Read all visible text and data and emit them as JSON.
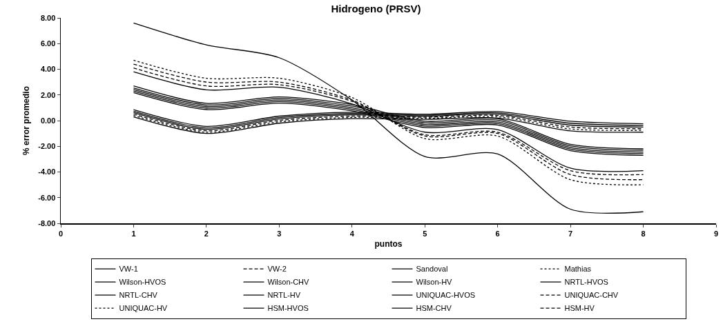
{
  "chart_data": {
    "type": "line",
    "title": "Hidrogeno (PRSV)",
    "xlabel": "puntos",
    "ylabel": "% error promedio",
    "x": [
      1,
      2,
      3,
      4,
      5,
      6,
      7,
      8
    ],
    "xlim": [
      0,
      9
    ],
    "xticks": [
      0,
      1,
      2,
      3,
      4,
      5,
      6,
      7,
      8,
      9
    ],
    "ylim": [
      -8,
      8
    ],
    "yticks": [
      {
        "value": -8,
        "label": "-8.00"
      },
      {
        "value": -6,
        "label": "-6.00"
      },
      {
        "value": -4,
        "label": "-4.00"
      },
      {
        "value": -2,
        "label": "-2.00"
      },
      {
        "value": 0,
        "label": "0.00"
      },
      {
        "value": 2,
        "label": "2.00"
      },
      {
        "value": 4,
        "label": "4.00"
      },
      {
        "value": 6,
        "label": "6.00"
      },
      {
        "value": 8,
        "label": "8.00"
      }
    ],
    "grid": false,
    "legend": "bottom",
    "marker": "none",
    "series": [
      {
        "name": "VW-1",
        "color": "#000000",
        "line_style": "solid",
        "values": [
          7.6,
          5.9,
          4.9,
          1.6,
          -2.8,
          -2.6,
          -6.9,
          -7.1
        ]
      },
      {
        "name": "VW-2",
        "color": "#000000",
        "line_style": "dashed",
        "values": [
          4.1,
          2.7,
          2.8,
          1.5,
          -1.1,
          -0.9,
          -3.9,
          -4.2
        ]
      },
      {
        "name": "Sandoval",
        "color": "#000000",
        "line_style": "solid",
        "values": [
          3.8,
          2.4,
          2.6,
          1.3,
          -0.9,
          -0.7,
          -3.7,
          -3.9
        ]
      },
      {
        "name": "Mathias",
        "color": "#000000",
        "line_style": "dotted",
        "values": [
          4.7,
          3.3,
          3.3,
          1.8,
          -1.4,
          -1.2,
          -4.6,
          -5.0
        ]
      },
      {
        "name": "Wilson-HVOS",
        "color": "#000000",
        "line_style": "solid",
        "values": [
          2.7,
          1.35,
          1.85,
          1.25,
          -0.05,
          0.15,
          -1.85,
          -2.2
        ]
      },
      {
        "name": "Wilson-CHV",
        "color": "#000000",
        "line_style": "solid",
        "values": [
          2.42,
          1.1,
          1.6,
          1.0,
          -0.3,
          -0.1,
          -2.1,
          -2.45
        ]
      },
      {
        "name": "Wilson-HV",
        "color": "#000000",
        "line_style": "solid",
        "values": [
          2.18,
          0.86,
          1.36,
          0.76,
          -0.54,
          -0.34,
          -2.34,
          -2.7
        ]
      },
      {
        "name": "NRTL-HVOS",
        "color": "#000000",
        "line_style": "solid",
        "values": [
          0.85,
          -0.45,
          0.35,
          0.65,
          0.5,
          0.7,
          -0.05,
          -0.25
        ]
      },
      {
        "name": "NRTL-CHV",
        "color": "#000000",
        "line_style": "solid",
        "values": [
          0.62,
          -0.68,
          0.13,
          0.45,
          0.34,
          0.5,
          -0.35,
          -0.5
        ]
      },
      {
        "name": "NRTL-HV",
        "color": "#000000",
        "line_style": "solid",
        "values": [
          0.29,
          -1.0,
          -0.2,
          0.15,
          0.1,
          0.2,
          -0.8,
          -0.9
        ]
      },
      {
        "name": "UNIQUAC-HVOS",
        "color": "#000000",
        "line_style": "solid",
        "values": [
          2.55,
          1.22,
          1.72,
          1.13,
          -0.17,
          0.03,
          -1.97,
          -2.32
        ]
      },
      {
        "name": "UNIQUAC-CHV",
        "color": "#000000",
        "line_style": "dashed",
        "values": [
          0.51,
          -0.79,
          0.02,
          0.35,
          0.26,
          0.4,
          -0.5,
          -0.63
        ]
      },
      {
        "name": "UNIQUAC-HV",
        "color": "#000000",
        "line_style": "dotted",
        "values": [
          0.4,
          -0.9,
          -0.09,
          0.25,
          0.18,
          0.3,
          -0.65,
          -0.76
        ]
      },
      {
        "name": "HSM-HVOS",
        "color": "#000000",
        "line_style": "solid",
        "values": [
          2.3,
          0.98,
          1.48,
          0.88,
          -0.42,
          -0.22,
          -2.22,
          -2.57
        ]
      },
      {
        "name": "HSM-CHV",
        "color": "#000000",
        "line_style": "solid",
        "values": [
          0.73,
          -0.57,
          0.24,
          0.55,
          0.42,
          0.6,
          -0.2,
          -0.38
        ]
      },
      {
        "name": "HSM-HV",
        "color": "#000000",
        "line_style": "dashed",
        "values": [
          4.4,
          3.0,
          3.0,
          1.6,
          -1.2,
          -1.0,
          -4.2,
          -4.6
        ]
      }
    ]
  }
}
